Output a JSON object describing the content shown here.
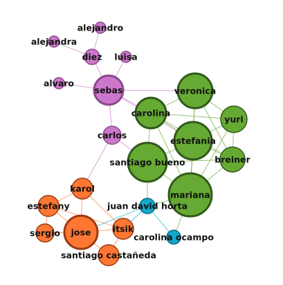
{
  "graph": {
    "node_colors": {
      "purple": "#cc77cc",
      "green": "#66aa33",
      "orange": "#ff7733",
      "cyan": "#11aacc"
    },
    "nodes": [
      {
        "id": "alejandro",
        "label": "alejandro",
        "group": "purple"
      },
      {
        "id": "alejandra",
        "label": "alejandra",
        "group": "purple"
      },
      {
        "id": "diez",
        "label": "diez",
        "group": "purple"
      },
      {
        "id": "luisa",
        "label": "luisa",
        "group": "purple"
      },
      {
        "id": "alvaro",
        "label": "alvaro",
        "group": "purple"
      },
      {
        "id": "sebas",
        "label": "sebas",
        "group": "purple"
      },
      {
        "id": "carlos",
        "label": "carlos",
        "group": "purple"
      },
      {
        "id": "veronica",
        "label": "veronica",
        "group": "green"
      },
      {
        "id": "carolina",
        "label": "carolina",
        "group": "green"
      },
      {
        "id": "yuri",
        "label": "yuri",
        "group": "green"
      },
      {
        "id": "estefania",
        "label": "estefania",
        "group": "green"
      },
      {
        "id": "breiner",
        "label": "breiner",
        "group": "green"
      },
      {
        "id": "santiago_bueno",
        "label": "santiago bueno",
        "group": "green"
      },
      {
        "id": "mariana",
        "label": "mariana",
        "group": "green"
      },
      {
        "id": "juan_david_horta",
        "label": "juan david horta",
        "group": "cyan"
      },
      {
        "id": "carolina_ocampo",
        "label": "carolina ocampo",
        "group": "cyan"
      },
      {
        "id": "karol",
        "label": "karol",
        "group": "orange"
      },
      {
        "id": "estefany",
        "label": "estefany",
        "group": "orange"
      },
      {
        "id": "sergio",
        "label": "sergio",
        "group": "orange"
      },
      {
        "id": "jose",
        "label": "jose",
        "group": "orange"
      },
      {
        "id": "itsik",
        "label": "itsik",
        "group": "orange"
      },
      {
        "id": "santiago_castaneda",
        "label": "santiago castañeda",
        "group": "orange"
      }
    ],
    "edges": [
      [
        "alejandro",
        "diez"
      ],
      [
        "alejandra",
        "diez"
      ],
      [
        "diez",
        "sebas"
      ],
      [
        "luisa",
        "sebas"
      ],
      [
        "alvaro",
        "sebas"
      ],
      [
        "sebas",
        "carlos"
      ],
      [
        "sebas",
        "veronica"
      ],
      [
        "sebas",
        "carolina"
      ],
      [
        "sebas",
        "estefania"
      ],
      [
        "carlos",
        "karol"
      ],
      [
        "carlos",
        "santiago_bueno"
      ],
      [
        "veronica",
        "carolina"
      ],
      [
        "veronica",
        "yuri"
      ],
      [
        "veronica",
        "estefania"
      ],
      [
        "veronica",
        "breiner"
      ],
      [
        "veronica",
        "mariana"
      ],
      [
        "carolina",
        "estefania"
      ],
      [
        "carolina",
        "santiago_bueno"
      ],
      [
        "carolina",
        "mariana"
      ],
      [
        "carolina",
        "yuri"
      ],
      [
        "carolina",
        "breiner"
      ],
      [
        "yuri",
        "estefania"
      ],
      [
        "yuri",
        "breiner"
      ],
      [
        "yuri",
        "mariana"
      ],
      [
        "estefania",
        "breiner"
      ],
      [
        "estefania",
        "santiago_bueno"
      ],
      [
        "estefania",
        "mariana"
      ],
      [
        "breiner",
        "mariana"
      ],
      [
        "breiner",
        "santiago_bueno"
      ],
      [
        "santiago_bueno",
        "mariana"
      ],
      [
        "santiago_bueno",
        "juan_david_horta"
      ],
      [
        "mariana",
        "juan_david_horta"
      ],
      [
        "mariana",
        "carolina_ocampo"
      ],
      [
        "juan_david_horta",
        "carolina_ocampo"
      ],
      [
        "juan_david_horta",
        "jose"
      ],
      [
        "juan_david_horta",
        "itsik"
      ],
      [
        "karol",
        "estefany"
      ],
      [
        "karol",
        "jose"
      ],
      [
        "karol",
        "itsik"
      ],
      [
        "estefany",
        "jose"
      ],
      [
        "estefany",
        "sergio"
      ],
      [
        "sergio",
        "jose"
      ],
      [
        "jose",
        "itsik"
      ],
      [
        "jose",
        "santiago_castaneda"
      ],
      [
        "itsik",
        "santiago_castaneda"
      ],
      [
        "estefany",
        "itsik"
      ]
    ]
  }
}
